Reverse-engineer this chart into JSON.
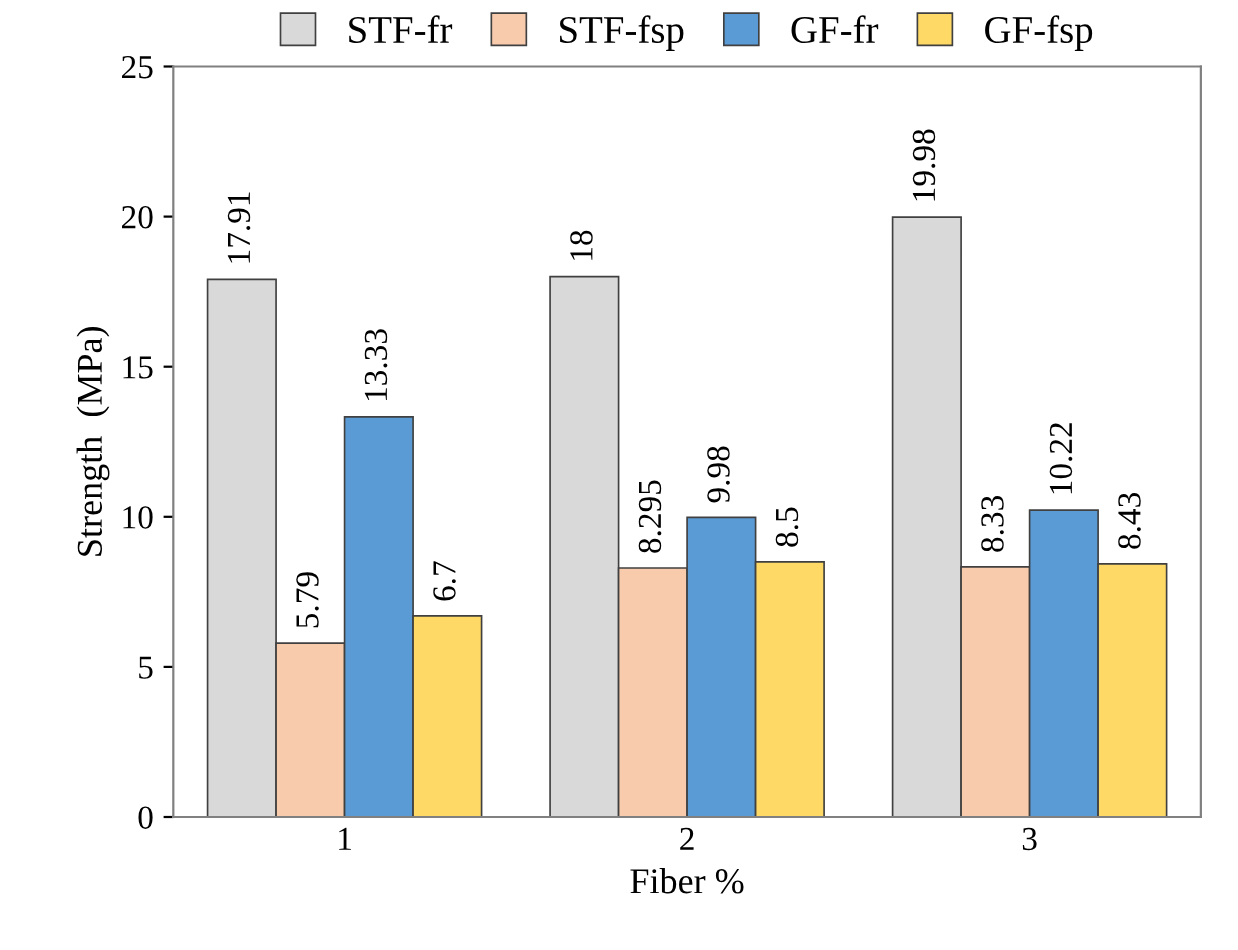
{
  "chart_data": {
    "type": "bar",
    "xlabel": "Fiber %",
    "ylabel": "Strength  (MPa)",
    "categories": [
      "1",
      "2",
      "3"
    ],
    "series": [
      {
        "name": "STF-fr",
        "color": "#d9d9d9",
        "values": [
          17.91,
          18,
          19.98
        ]
      },
      {
        "name": "STF-fsp",
        "color": "#f8cbad",
        "values": [
          5.79,
          8.295,
          8.33
        ]
      },
      {
        "name": "GF-fr",
        "color": "#5b9bd5",
        "values": [
          13.33,
          9.98,
          10.22
        ]
      },
      {
        "name": "GF-fsp",
        "color": "#ffd966",
        "values": [
          6.7,
          8.5,
          8.43
        ]
      }
    ],
    "ylim": [
      0,
      25
    ],
    "yticks": [
      0,
      5,
      10,
      15,
      20,
      25
    ],
    "grid": false,
    "legend": "top",
    "data_labels": true
  }
}
